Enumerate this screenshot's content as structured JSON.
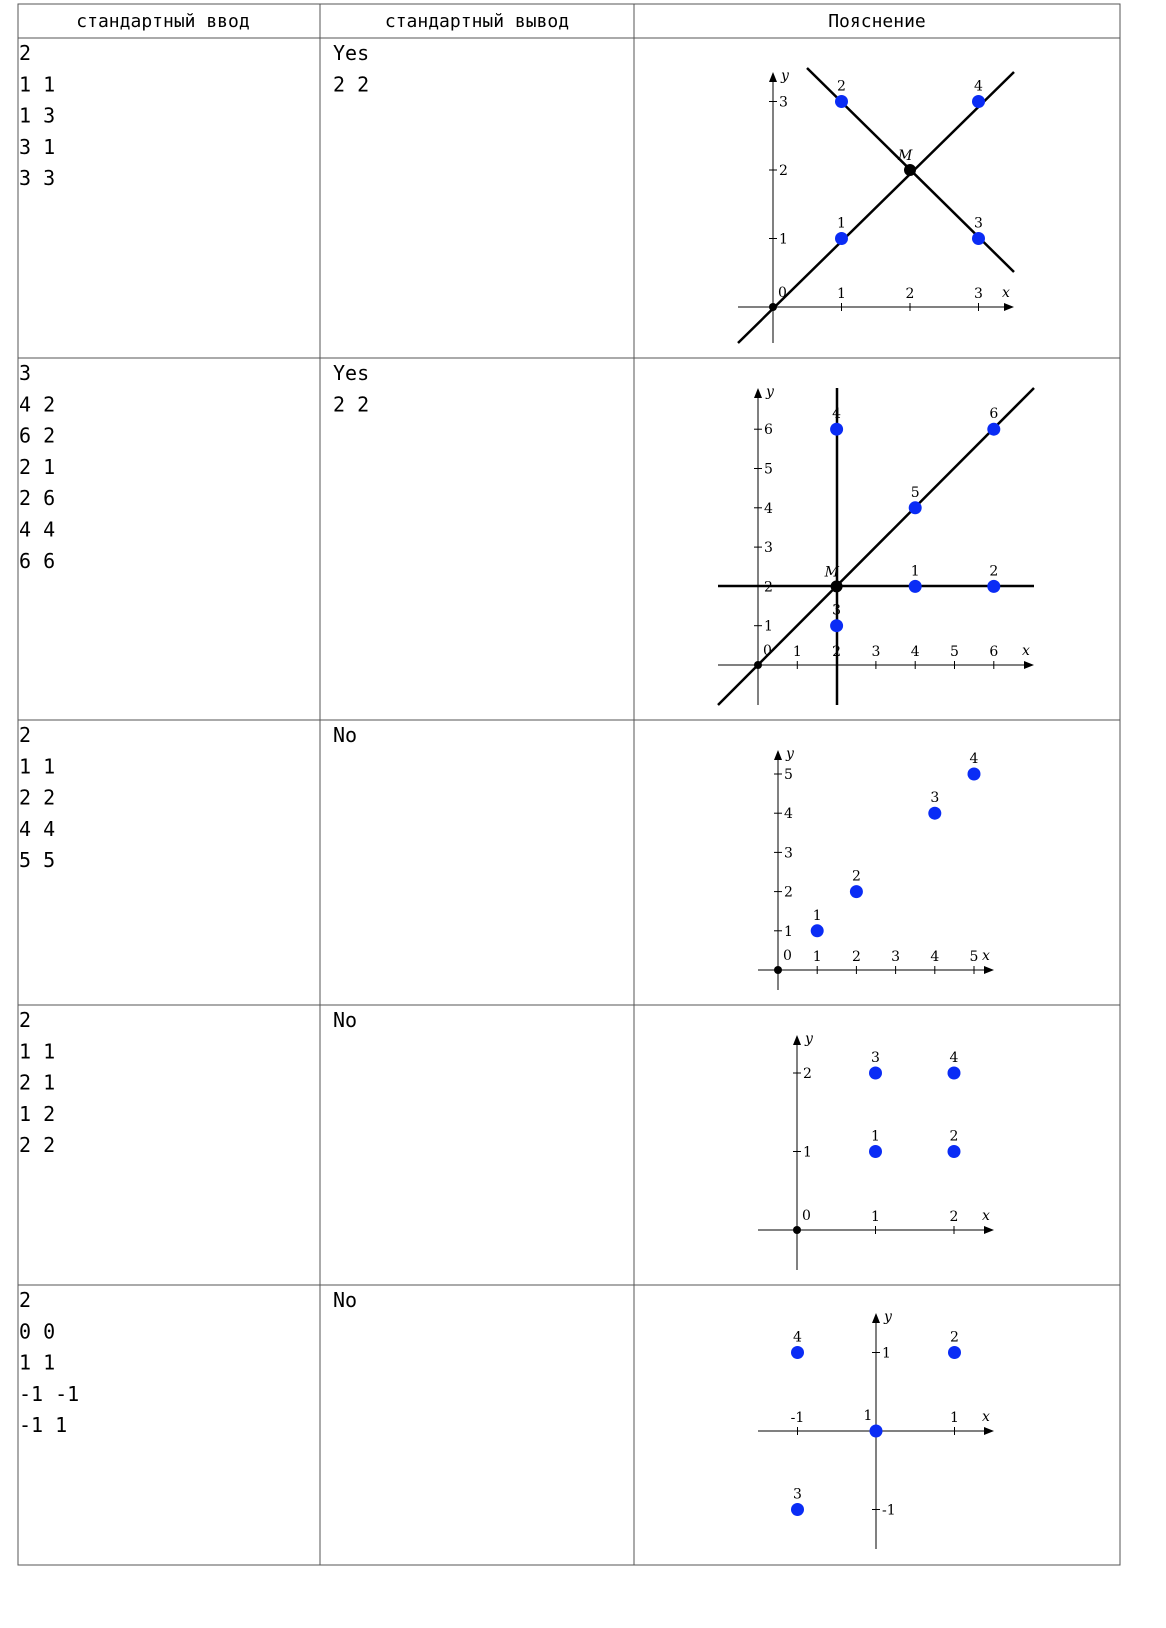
{
  "table": {
    "headers": [
      "стандартный ввод",
      "стандартный вывод",
      "Пояснение"
    ],
    "rows": [
      {
        "input": [
          "2",
          "1 1",
          "1 3",
          "3 1",
          "3 3"
        ],
        "output": [
          "Yes",
          "2 2"
        ],
        "diagram": {
          "x_label": "x",
          "y_label": "y",
          "origin_label": "0",
          "xticks": [
            1,
            2,
            3
          ],
          "yticks": [
            1,
            2,
            3
          ],
          "points": [
            {
              "label": "1",
              "x": 1,
              "y": 1
            },
            {
              "label": "2",
              "x": 1,
              "y": 3
            },
            {
              "label": "3",
              "x": 3,
              "y": 1
            },
            {
              "label": "4",
              "x": 3,
              "y": 3
            }
          ],
          "center": {
            "label": "M",
            "x": 2,
            "y": 2
          }
        }
      },
      {
        "input": [
          "3",
          "4 2",
          "6 2",
          "2 1",
          "2 6",
          "4 4",
          "6 6"
        ],
        "output": [
          "Yes",
          "2 2"
        ],
        "diagram": {
          "x_label": "x",
          "y_label": "y",
          "origin_label": "0",
          "xticks": [
            1,
            2,
            3,
            4,
            5,
            6
          ],
          "yticks": [
            1,
            2,
            3,
            4,
            5,
            6
          ],
          "points": [
            {
              "label": "1",
              "x": 4,
              "y": 2
            },
            {
              "label": "2",
              "x": 6,
              "y": 2
            },
            {
              "label": "3",
              "x": 2,
              "y": 1
            },
            {
              "label": "4",
              "x": 2,
              "y": 6
            },
            {
              "label": "5",
              "x": 4,
              "y": 4
            },
            {
              "label": "6",
              "x": 6,
              "y": 6
            }
          ],
          "center": {
            "label": "M",
            "x": 2,
            "y": 2
          }
        }
      },
      {
        "input": [
          "2",
          "1 1",
          "2 2",
          "4 4",
          "5 5"
        ],
        "output": [
          "No"
        ],
        "diagram": {
          "x_label": "x",
          "y_label": "y",
          "origin_label": "0",
          "xticks": [
            1,
            2,
            3,
            4,
            5
          ],
          "yticks": [
            1,
            2,
            3,
            4,
            5
          ],
          "points": [
            {
              "label": "1",
              "x": 1,
              "y": 1
            },
            {
              "label": "2",
              "x": 2,
              "y": 2
            },
            {
              "label": "3",
              "x": 4,
              "y": 4
            },
            {
              "label": "4",
              "x": 5,
              "y": 5
            }
          ]
        }
      },
      {
        "input": [
          "2",
          "1 1",
          "2 1",
          "1 2",
          "2 2"
        ],
        "output": [
          "No"
        ],
        "diagram": {
          "x_label": "x",
          "y_label": "y",
          "origin_label": "0",
          "xticks": [
            1,
            2
          ],
          "yticks": [
            1,
            2
          ],
          "points": [
            {
              "label": "1",
              "x": 1,
              "y": 1
            },
            {
              "label": "2",
              "x": 2,
              "y": 1
            },
            {
              "label": "3",
              "x": 1,
              "y": 2
            },
            {
              "label": "4",
              "x": 2,
              "y": 2
            }
          ]
        }
      },
      {
        "input": [
          "2",
          "0 0",
          "1 1",
          "-1 -1",
          "-1 1"
        ],
        "output": [
          "No"
        ],
        "diagram": {
          "x_label": "x",
          "y_label": "y",
          "xticks": [
            -1,
            1
          ],
          "yticks": [
            -1,
            1
          ],
          "points": [
            {
              "label": "1",
              "x": 0,
              "y": 0
            },
            {
              "label": "2",
              "x": 1,
              "y": 1
            },
            {
              "label": "3",
              "x": -1,
              "y": -1
            },
            {
              "label": "4",
              "x": -1,
              "y": 1
            }
          ]
        }
      }
    ]
  }
}
